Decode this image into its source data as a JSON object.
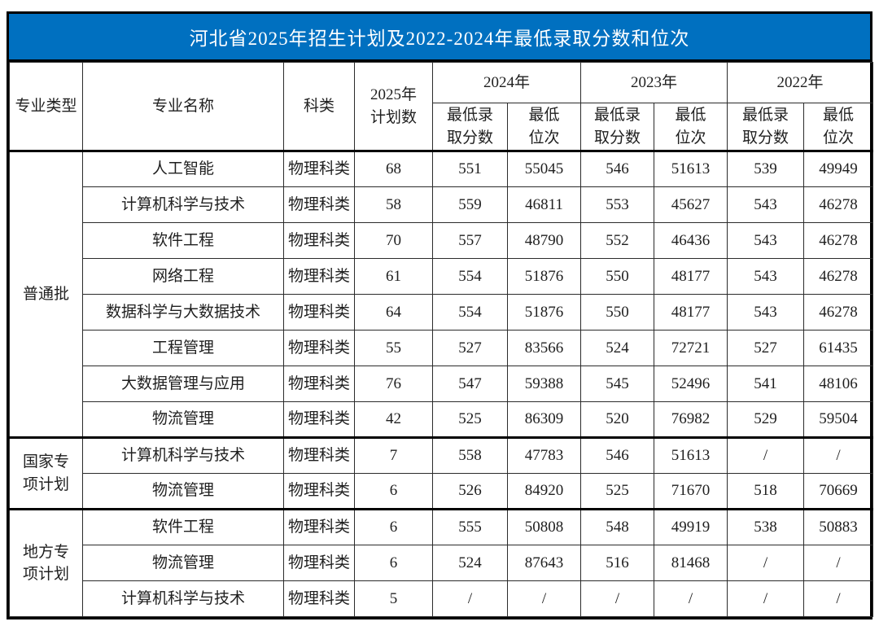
{
  "title": "河北省2025年招生计划及2022-2024年最低录取分数和位次",
  "colors": {
    "title_bg": "#0070C0",
    "title_text": "#FFFFFF",
    "border": "#000000",
    "text": "#1F1F1F"
  },
  "table": {
    "headers": {
      "major_type": "专业类型",
      "major_name": "专业名称",
      "subject": "科类",
      "plan_2025": "2025年\n计划数",
      "year_2024": "2024年",
      "year_2023": "2023年",
      "year_2022": "2022年",
      "min_score": "最低录\n取分数",
      "min_rank": "最低\n位次"
    },
    "groups": [
      {
        "label": "普通批",
        "rows": [
          [
            "人工智能",
            "物理科类",
            "68",
            "551",
            "55045",
            "546",
            "51613",
            "539",
            "49949"
          ],
          [
            "计算机科学与技术",
            "物理科类",
            "58",
            "559",
            "46811",
            "553",
            "45627",
            "543",
            "46278"
          ],
          [
            "软件工程",
            "物理科类",
            "70",
            "557",
            "48790",
            "552",
            "46436",
            "543",
            "46278"
          ],
          [
            "网络工程",
            "物理科类",
            "61",
            "554",
            "51876",
            "550",
            "48177",
            "543",
            "46278"
          ],
          [
            "数据科学与大数据技术",
            "物理科类",
            "64",
            "554",
            "51876",
            "550",
            "48177",
            "543",
            "46278"
          ],
          [
            "工程管理",
            "物理科类",
            "55",
            "527",
            "83566",
            "524",
            "72721",
            "527",
            "61435"
          ],
          [
            "大数据管理与应用",
            "物理科类",
            "76",
            "547",
            "59388",
            "545",
            "52496",
            "541",
            "48106"
          ],
          [
            "物流管理",
            "物理科类",
            "42",
            "525",
            "86309",
            "520",
            "76982",
            "529",
            "59504"
          ]
        ]
      },
      {
        "label": "国家专\n项计划",
        "rows": [
          [
            "计算机科学与技术",
            "物理科类",
            "7",
            "558",
            "47783",
            "546",
            "51613",
            "/",
            "/"
          ],
          [
            "物流管理",
            "物理科类",
            "6",
            "526",
            "84920",
            "525",
            "71670",
            "518",
            "70669"
          ]
        ]
      },
      {
        "label": "地方专\n项计划",
        "rows": [
          [
            "软件工程",
            "物理科类",
            "6",
            "555",
            "50808",
            "548",
            "49919",
            "538",
            "50883"
          ],
          [
            "物流管理",
            "物理科类",
            "6",
            "524",
            "87643",
            "516",
            "81468",
            "/",
            "/"
          ],
          [
            "计算机科学与技术",
            "物理科类",
            "5",
            "/",
            "/",
            "/",
            "/",
            "/",
            "/"
          ]
        ]
      }
    ]
  }
}
